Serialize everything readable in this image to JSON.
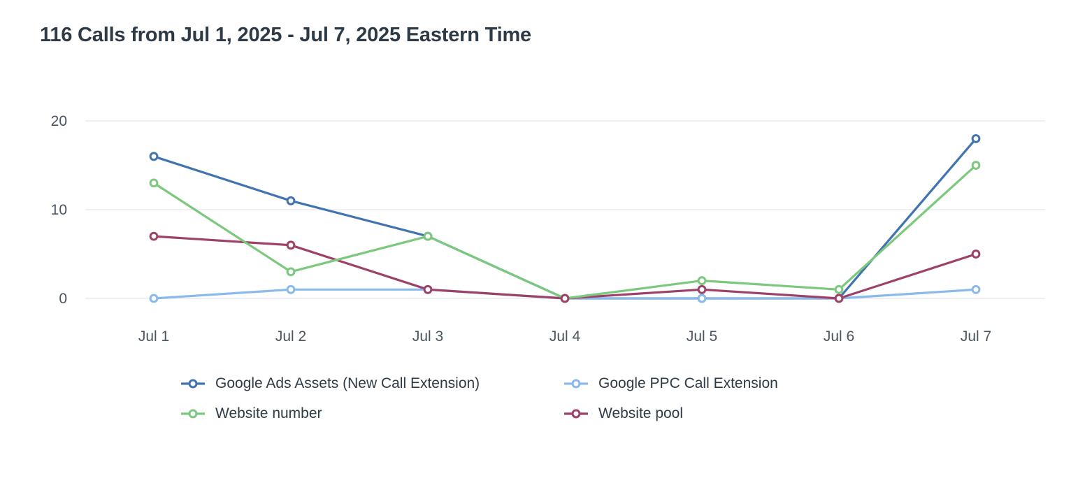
{
  "chart_data": {
    "type": "line",
    "title": "116 Calls from Jul 1, 2025 - Jul 7, 2025 Eastern Time",
    "total_calls": 116,
    "categories": [
      "Jul 1",
      "Jul 2",
      "Jul 3",
      "Jul 4",
      "Jul 5",
      "Jul 6",
      "Jul 7"
    ],
    "xlabel": "",
    "ylabel": "",
    "ylim": [
      0,
      20
    ],
    "y_ticks": [
      0,
      10,
      20
    ],
    "grid": "horizontal-only",
    "legend_position": "bottom",
    "marker_style": "open-circle",
    "series": [
      {
        "name": "Google Ads Assets (New Call Extension)",
        "color": "#4273b1",
        "values": [
          16,
          11,
          7,
          0,
          0,
          0,
          18
        ]
      },
      {
        "name": "Google PPC Call Extension",
        "color": "#8abaec",
        "values": [
          0,
          1,
          1,
          0,
          0,
          0,
          1
        ]
      },
      {
        "name": "Website number",
        "color": "#7cc87d",
        "values": [
          13,
          3,
          7,
          0,
          2,
          1,
          15
        ]
      },
      {
        "name": "Website pool",
        "color": "#9e4168",
        "values": [
          7,
          6,
          1,
          0,
          1,
          0,
          5
        ]
      }
    ],
    "colors": {
      "background": "#ffffff",
      "gridline": "#e8ecf1",
      "axis_text": "#4a5560",
      "title_text": "#2e3a46"
    }
  }
}
